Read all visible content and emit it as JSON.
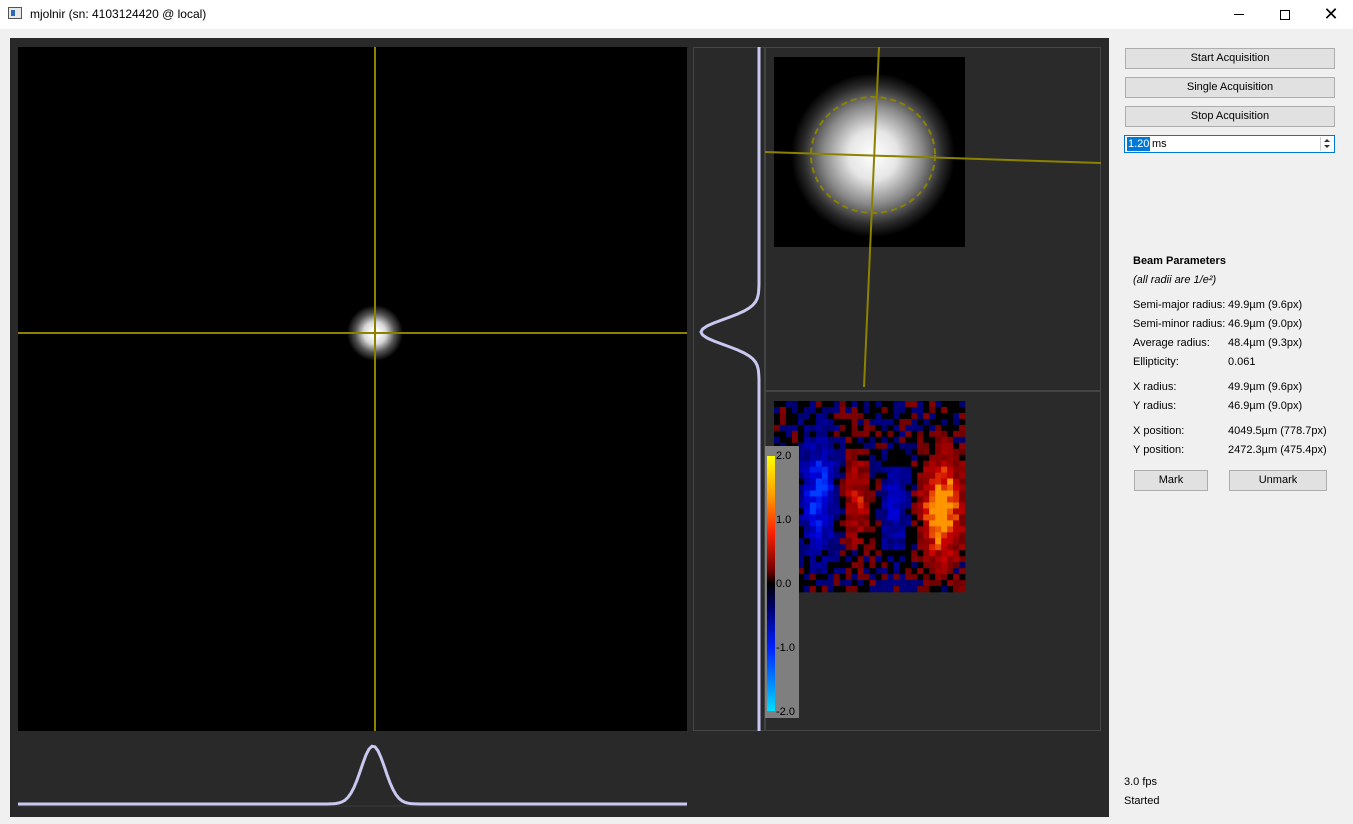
{
  "window": {
    "title": "mjolnir (sn: 4103124420 @ local)",
    "icon": "app-window-icon"
  },
  "controls": {
    "start_label": "Start Acquisition",
    "single_label": "Single Acquisition",
    "stop_label": "Stop Acquisition",
    "exposure_value": "1.20",
    "exposure_unit": "ms"
  },
  "beam": {
    "title": "Beam Parameters",
    "note": "(all radii are 1/e²)",
    "params": [
      {
        "label": "Semi-major radius:",
        "value": "49.9µm (9.6px)"
      },
      {
        "label": "Semi-minor radius:",
        "value": "46.9µm (9.0px)"
      },
      {
        "label": "Average radius:",
        "value": "48.4µm (9.3px)"
      },
      {
        "label": "Ellipticity:",
        "value": "0.061"
      },
      {
        "label": "X radius:",
        "value": "49.9µm (9.6px)"
      },
      {
        "label": "Y radius:",
        "value": "46.9µm (9.0px)"
      },
      {
        "label": "X position:",
        "value": "4049.5µm (778.7px)"
      },
      {
        "label": "Y position:",
        "value": "2472.3µm (475.4px)"
      }
    ],
    "mark_label": "Mark",
    "unmark_label": "Unmark"
  },
  "colorbar": {
    "ticks": [
      "2.0",
      "1.0",
      "0.0",
      "-1.0",
      "-2.0"
    ]
  },
  "status": {
    "fps": "3.0 fps",
    "state": "Started"
  },
  "colors": {
    "crosshair": "#8a8200",
    "profile": "#c8c8f0",
    "panel_bg": "#292929"
  }
}
